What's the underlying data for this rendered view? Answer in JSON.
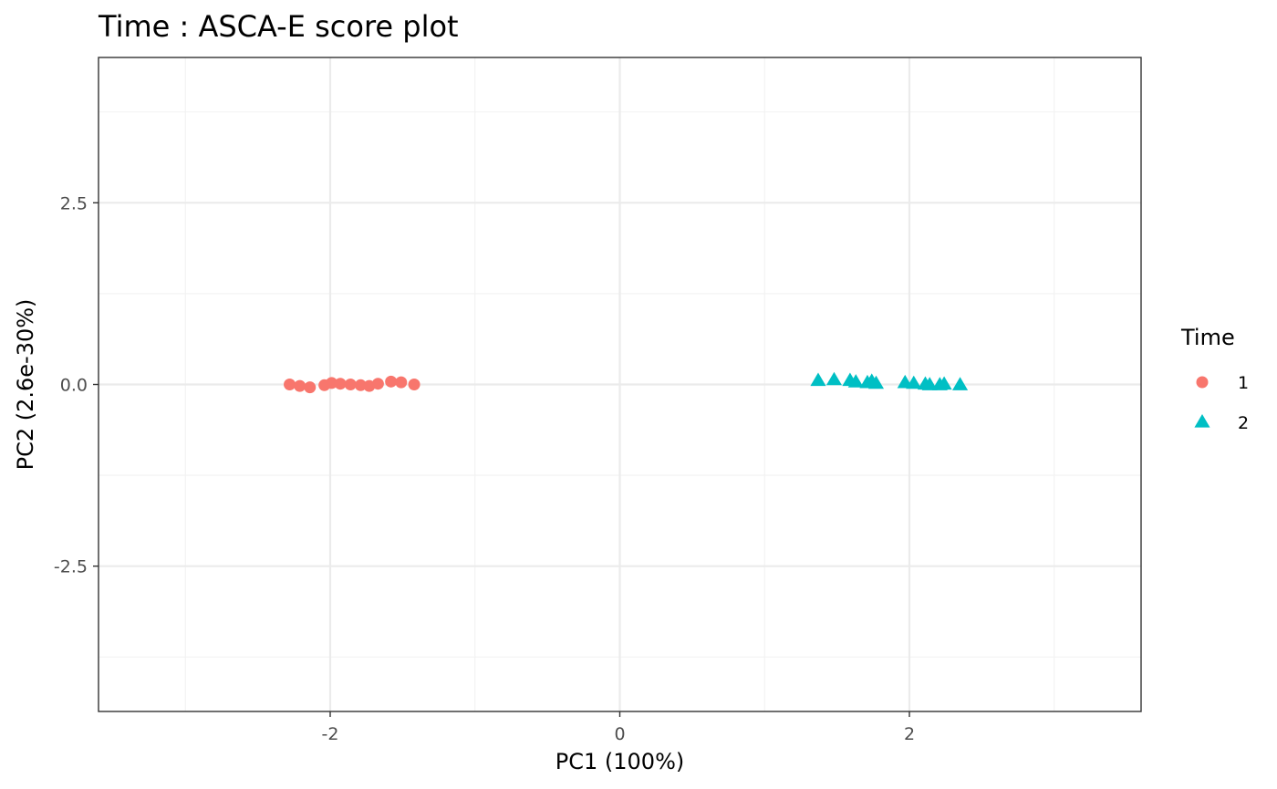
{
  "chart_data": {
    "type": "scatter",
    "title": "Time : ASCA-E score plot",
    "xlabel": "PC1 (100%)",
    "ylabel": "PC2 (2.6e-30%)",
    "xlim": [
      -3.6,
      3.6
    ],
    "ylim": [
      -4.5,
      4.5
    ],
    "xticks": [
      -2,
      0,
      2
    ],
    "xtick_labels": [
      "-2",
      "0",
      "2"
    ],
    "yticks": [
      2.5,
      0,
      -2.5
    ],
    "ytick_labels": [
      "2.5",
      "0.0",
      "-2.5"
    ],
    "grid": true,
    "legend": {
      "title": "Time",
      "position": "right"
    },
    "series": [
      {
        "name": "1",
        "color": "#F8766D",
        "marker": "circle",
        "points": [
          [
            -2.28,
            0.0
          ],
          [
            -2.21,
            -0.02
          ],
          [
            -2.14,
            -0.04
          ],
          [
            -2.04,
            -0.01
          ],
          [
            -1.99,
            0.02
          ],
          [
            -1.93,
            0.01
          ],
          [
            -1.86,
            0.0
          ],
          [
            -1.79,
            -0.01
          ],
          [
            -1.73,
            -0.02
          ],
          [
            -1.67,
            0.01
          ],
          [
            -1.58,
            0.04
          ],
          [
            -1.51,
            0.03
          ],
          [
            -1.42,
            0.0
          ]
        ]
      },
      {
        "name": "2",
        "color": "#00BFC4",
        "marker": "triangle",
        "points": [
          [
            1.37,
            0.05
          ],
          [
            1.48,
            0.06
          ],
          [
            1.59,
            0.05
          ],
          [
            1.63,
            0.03
          ],
          [
            1.71,
            0.02
          ],
          [
            1.74,
            0.04
          ],
          [
            1.77,
            0.01
          ],
          [
            1.97,
            0.02
          ],
          [
            2.03,
            0.01
          ],
          [
            2.11,
            0.0
          ],
          [
            2.14,
            -0.01
          ],
          [
            2.21,
            -0.01
          ],
          [
            2.24,
            0.0
          ],
          [
            2.35,
            -0.01
          ]
        ]
      }
    ]
  }
}
